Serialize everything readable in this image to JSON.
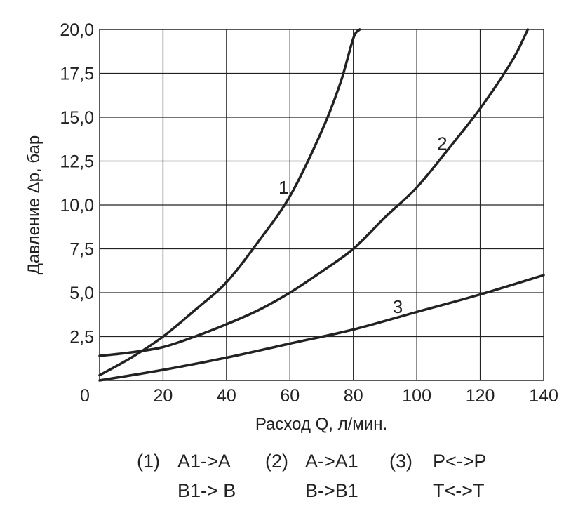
{
  "chart_data": {
    "type": "line",
    "xlabel": "Расход Q, л/мин.",
    "ylabel": "Давление Δp, бар",
    "xlim": [
      0,
      140
    ],
    "ylim": [
      0,
      20
    ],
    "x_ticks": [
      "0",
      "20",
      "40",
      "60",
      "80",
      "100",
      "120",
      "140"
    ],
    "y_ticks": [
      "2,5",
      "5,0",
      "7,5",
      "10,0",
      "12,5",
      "15,0",
      "17,5",
      "20,0"
    ],
    "grid": true,
    "series": [
      {
        "name": "1",
        "x": [
          0,
          10,
          20,
          30,
          40,
          50,
          60,
          70,
          76,
          80,
          82
        ],
        "y": [
          0.3,
          1.3,
          2.5,
          4.0,
          5.6,
          7.9,
          10.5,
          14.2,
          17.0,
          19.5,
          20.0
        ]
      },
      {
        "name": "2",
        "x": [
          0,
          10,
          20,
          30,
          40,
          50,
          60,
          70,
          80,
          90,
          100,
          110,
          120,
          130,
          135
        ],
        "y": [
          1.4,
          1.6,
          1.9,
          2.5,
          3.2,
          4.0,
          5.0,
          6.2,
          7.5,
          9.3,
          11.0,
          13.2,
          15.5,
          18.2,
          20.0
        ]
      },
      {
        "name": "3",
        "x": [
          0,
          20,
          40,
          60,
          80,
          100,
          120,
          140
        ],
        "y": [
          0.0,
          0.6,
          1.3,
          2.1,
          2.9,
          3.9,
          4.9,
          6.0
        ]
      }
    ],
    "curve_labels": [
      "1",
      "2",
      "3"
    ]
  },
  "legend": [
    {
      "num": "(1)",
      "lines": [
        "A1->A",
        "B1-> B"
      ]
    },
    {
      "num": "(2)",
      "lines": [
        "A->A1",
        "B->B1"
      ]
    },
    {
      "num": "(3)",
      "lines": [
        "P<->P",
        "T<->T"
      ]
    }
  ]
}
